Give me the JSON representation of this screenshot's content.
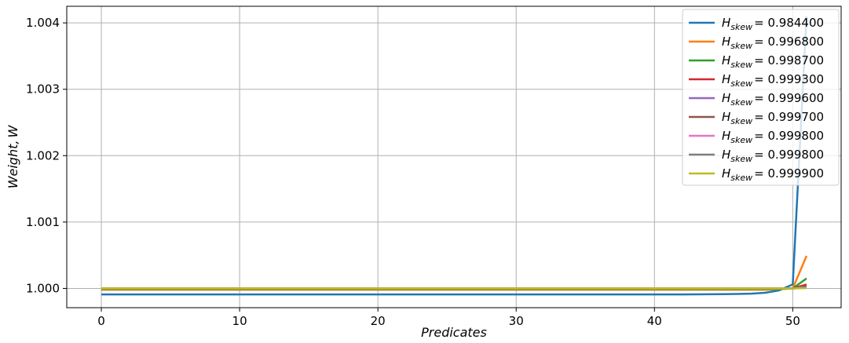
{
  "chart_data": {
    "type": "line",
    "title": "",
    "xlabel": "Predicates",
    "ylabel": "Weight, W",
    "xlim": [
      -2.5,
      53.5
    ],
    "ylim": [
      0.99971,
      1.00425
    ],
    "xticks": [
      0,
      10,
      20,
      30,
      40,
      50
    ],
    "yticks": [
      1.0,
      1.001,
      1.002,
      1.003,
      1.004
    ],
    "xtick_labels": [
      "0",
      "10",
      "20",
      "30",
      "40",
      "50"
    ],
    "ytick_labels": [
      "1.000",
      "1.001",
      "1.002",
      "1.003",
      "1.004"
    ],
    "grid": true,
    "legend_position": "top-right",
    "x": [
      0,
      42,
      43,
      44,
      45,
      46,
      47,
      48,
      49,
      50,
      51
    ],
    "series": [
      {
        "name": "H_skew = 0.984400",
        "legend_sub": "skew",
        "legend_value": "= 0.984400",
        "color": "#1f77b4",
        "values": [
          0.99991,
          0.99991,
          0.999911,
          0.999912,
          0.999914,
          0.999917,
          0.999922,
          0.999935,
          0.99997,
          1.00006,
          1.0041
        ]
      },
      {
        "name": "H_skew = 0.996800",
        "legend_sub": "skew",
        "legend_value": "= 0.996800",
        "color": "#ff7f0e",
        "values": [
          0.99998,
          0.99998,
          0.99998,
          0.99998,
          0.99998,
          0.99998,
          0.99998,
          0.99998,
          0.99999,
          1.0,
          1.00049
        ]
      },
      {
        "name": "H_skew = 0.998700",
        "legend_sub": "skew",
        "legend_value": "= 0.998700",
        "color": "#2ca02c",
        "values": [
          0.99999,
          0.99999,
          0.99999,
          0.99999,
          0.99999,
          0.99999,
          0.99999,
          0.99999,
          0.99999,
          1.0,
          1.00015
        ]
      },
      {
        "name": "H_skew = 0.999300",
        "legend_sub": "skew",
        "legend_value": "= 0.999300",
        "color": "#d62728",
        "values": [
          0.999995,
          0.999995,
          0.999995,
          0.999995,
          0.999995,
          0.999995,
          0.999995,
          0.999995,
          0.999995,
          1.0,
          1.00006
        ]
      },
      {
        "name": "H_skew = 0.999600",
        "legend_sub": "skew",
        "legend_value": "= 0.999600",
        "color": "#9467bd",
        "values": [
          0.999997,
          0.999997,
          0.999997,
          0.999997,
          0.999997,
          0.999997,
          0.999997,
          0.999997,
          0.999997,
          1.0,
          1.00003
        ]
      },
      {
        "name": "H_skew = 0.999700",
        "legend_sub": "skew",
        "legend_value": "= 0.999700",
        "color": "#8c564b",
        "values": [
          0.999998,
          0.999998,
          0.999998,
          0.999998,
          0.999998,
          0.999998,
          0.999998,
          0.999998,
          0.999998,
          1.0,
          1.00002
        ]
      },
      {
        "name": "H_skew = 0.999800",
        "legend_sub": "skew",
        "legend_value": "= 0.999800",
        "color": "#e377c2",
        "values": [
          0.999999,
          0.999999,
          0.999999,
          0.999999,
          0.999999,
          0.999999,
          0.999999,
          0.999999,
          0.999999,
          1.0,
          1.00001
        ]
      },
      {
        "name": "H_skew = 0.999800",
        "legend_sub": "skew",
        "legend_value": "= 0.999800",
        "color": "#7f7f7f",
        "values": [
          0.999999,
          0.999999,
          0.999999,
          0.999999,
          0.999999,
          0.999999,
          0.999999,
          0.999999,
          0.999999,
          1.0,
          1.00001
        ]
      },
      {
        "name": "H_skew = 0.999900",
        "legend_sub": "skew",
        "legend_value": "= 0.999900",
        "color": "#bcbd22",
        "values": [
          1.0,
          1.0,
          1.0,
          1.0,
          1.0,
          1.0,
          1.0,
          1.0,
          1.0,
          1.0,
          1.000005
        ]
      }
    ]
  }
}
